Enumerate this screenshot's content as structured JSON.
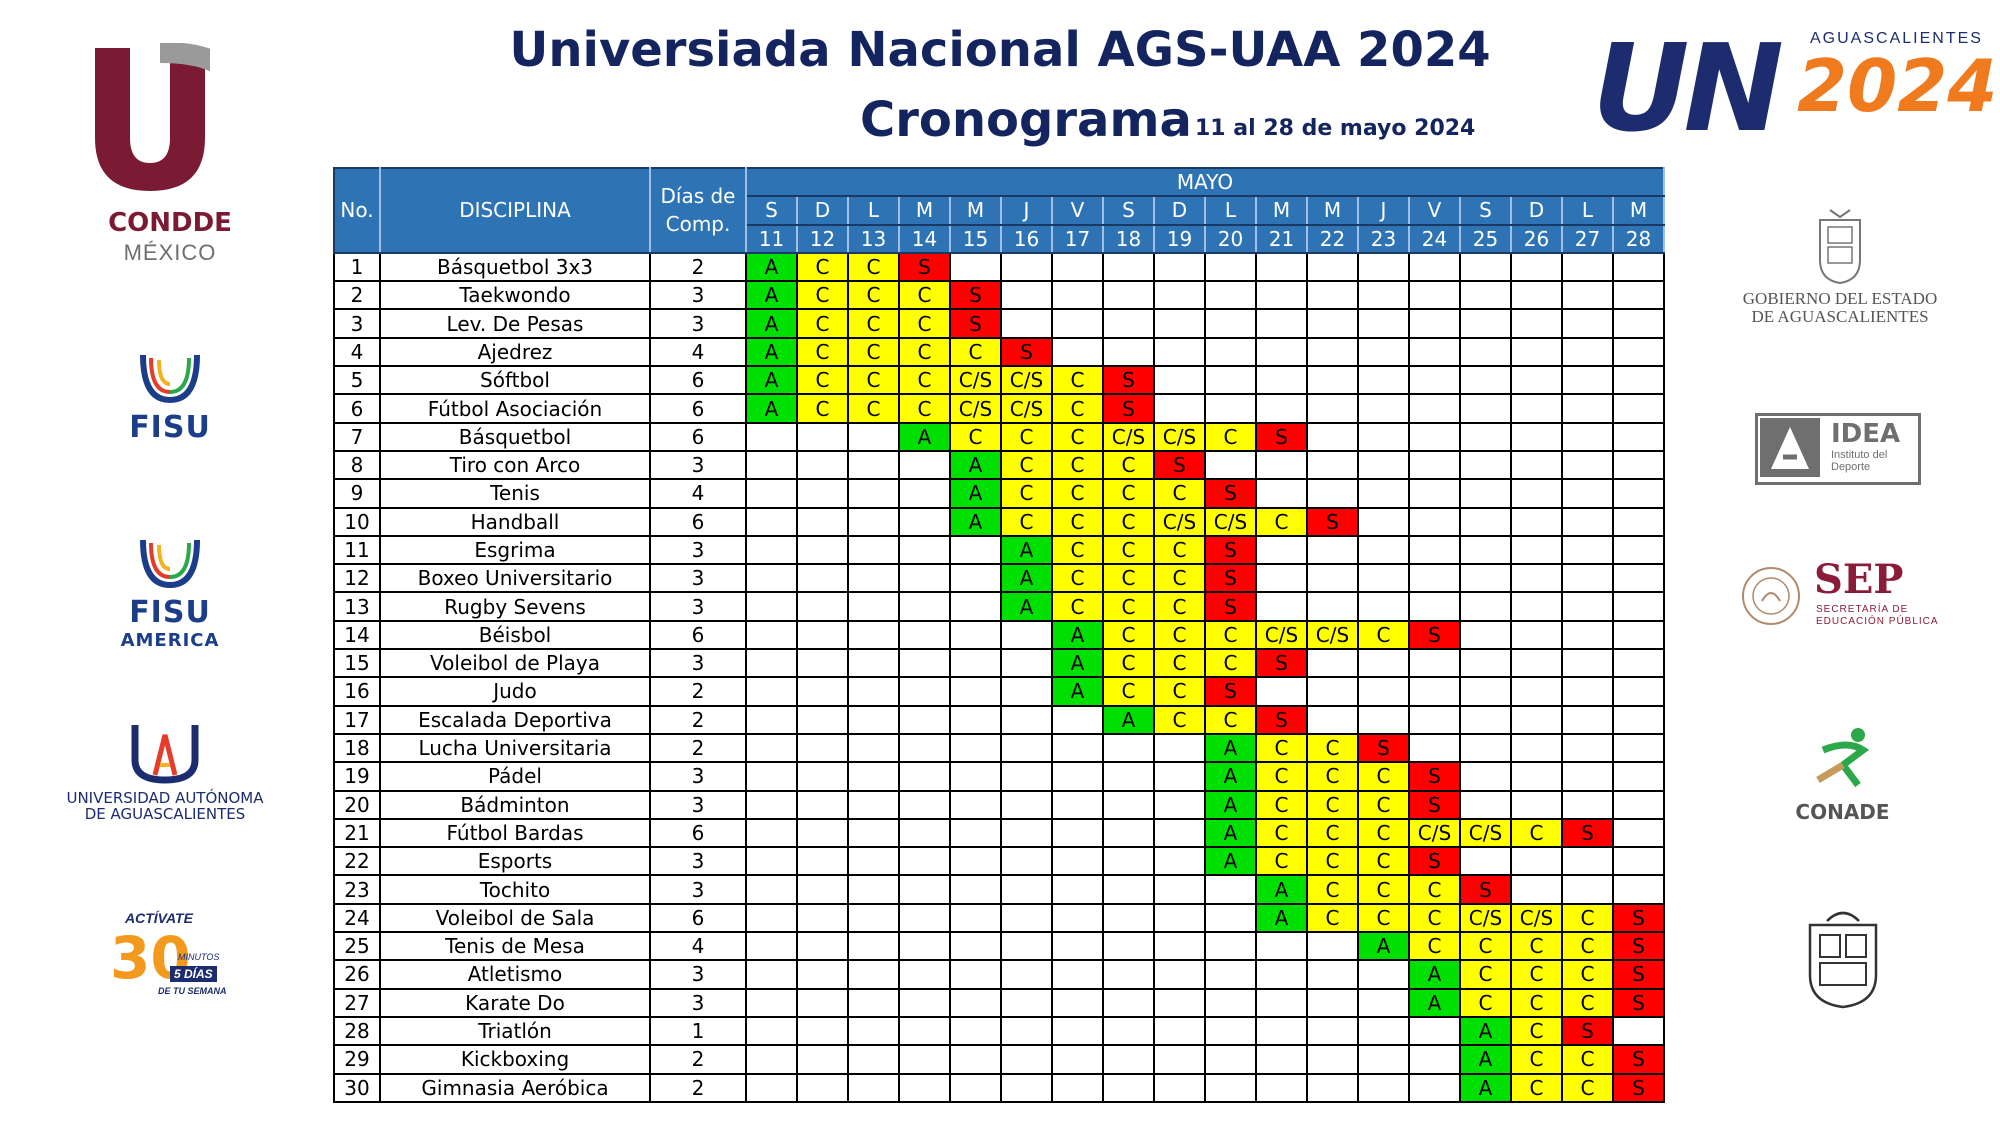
{
  "header": {
    "title": "Universiada Nacional AGS-UAA 2024",
    "subtitle": "Cronograma",
    "dates": "11 al 28 de mayo 2024"
  },
  "logos": {
    "condde_line1": "CONDDE",
    "condde_line2": "MÉXICO",
    "fisu": "FISU",
    "fisu_america_1": "FISU",
    "fisu_america_2": "AMERICA",
    "uaa_line1": "UNIVERSIDAD AUTÓNOMA",
    "uaa_line2": "DE AGUASCALIENTES",
    "activate_1": "ACTÍVATE",
    "activate_2": "30",
    "activate_3": "MINUTOS",
    "activate_4": "5 DÍAS",
    "activate_5": "DE TU SEMANA",
    "un_word": "UN",
    "un_city": "AGUASCALIENTES",
    "un_year": "2024",
    "gob_line1": "GOBIERNO DEL ESTADO",
    "gob_line2": "DE AGUASCALIENTES",
    "idea_title": "IDEA",
    "idea_sub1": "Instituto del",
    "idea_sub2": "Deporte",
    "sep_title": "SEP",
    "sep_sub1": "SECRETARÍA DE",
    "sep_sub2": "EDUCACIÓN PÚBLICA",
    "conade": "CONADE"
  },
  "table": {
    "col_no": "No.",
    "col_disc": "DISCIPLINA",
    "col_dias": "Días de Comp.",
    "month": "MAYO",
    "weekdays": [
      "S",
      "D",
      "L",
      "M",
      "M",
      "J",
      "V",
      "S",
      "D",
      "L",
      "M",
      "M",
      "J",
      "V",
      "S",
      "D",
      "L",
      "M"
    ],
    "days": [
      "11",
      "12",
      "13",
      "14",
      "15",
      "16",
      "17",
      "18",
      "19",
      "20",
      "21",
      "22",
      "23",
      "24",
      "25",
      "26",
      "27",
      "28"
    ],
    "rows": [
      {
        "no": "1",
        "name": "Básquetbol 3x3",
        "dias": "2",
        "cells": [
          "A",
          "C",
          "C",
          "S",
          "",
          "",
          "",
          "",
          "",
          "",
          "",
          "",
          "",
          "",
          "",
          "",
          "",
          ""
        ]
      },
      {
        "no": "2",
        "name": "Taekwondo",
        "dias": "3",
        "cells": [
          "A",
          "C",
          "C",
          "C",
          "S",
          "",
          "",
          "",
          "",
          "",
          "",
          "",
          "",
          "",
          "",
          "",
          "",
          ""
        ]
      },
      {
        "no": "3",
        "name": "Lev. De Pesas",
        "dias": "3",
        "cells": [
          "A",
          "C",
          "C",
          "C",
          "S",
          "",
          "",
          "",
          "",
          "",
          "",
          "",
          "",
          "",
          "",
          "",
          "",
          ""
        ]
      },
      {
        "no": "4",
        "name": "Ajedrez",
        "dias": "4",
        "cells": [
          "A",
          "C",
          "C",
          "C",
          "C",
          "S",
          "",
          "",
          "",
          "",
          "",
          "",
          "",
          "",
          "",
          "",
          "",
          ""
        ]
      },
      {
        "no": "5",
        "name": "Sóftbol",
        "dias": "6",
        "cells": [
          "A",
          "C",
          "C",
          "C",
          "C/S",
          "C/S",
          "C",
          "S",
          "",
          "",
          "",
          "",
          "",
          "",
          "",
          "",
          "",
          ""
        ]
      },
      {
        "no": "6",
        "name": "Fútbol Asociación",
        "dias": "6",
        "cells": [
          "A",
          "C",
          "C",
          "C",
          "C/S",
          "C/S",
          "C",
          "S",
          "",
          "",
          "",
          "",
          "",
          "",
          "",
          "",
          "",
          ""
        ]
      },
      {
        "no": "7",
        "name": "Básquetbol",
        "dias": "6",
        "cells": [
          "",
          "",
          "",
          "A",
          "C",
          "C",
          "C",
          "C/S",
          "C/S",
          "C",
          "S",
          "",
          "",
          "",
          "",
          "",
          "",
          ""
        ]
      },
      {
        "no": "8",
        "name": "Tiro con Arco",
        "dias": "3",
        "cells": [
          "",
          "",
          "",
          "",
          "A",
          "C",
          "C",
          "C",
          "S",
          "",
          "",
          "",
          "",
          "",
          "",
          "",
          "",
          ""
        ]
      },
      {
        "no": "9",
        "name": "Tenis",
        "dias": "4",
        "cells": [
          "",
          "",
          "",
          "",
          "A",
          "C",
          "C",
          "C",
          "C",
          "S",
          "",
          "",
          "",
          "",
          "",
          "",
          "",
          ""
        ]
      },
      {
        "no": "10",
        "name": "Handball",
        "dias": "6",
        "cells": [
          "",
          "",
          "",
          "",
          "A",
          "C",
          "C",
          "C",
          "C/S",
          "C/S",
          "C",
          "S",
          "",
          "",
          "",
          "",
          "",
          ""
        ]
      },
      {
        "no": "11",
        "name": "Esgrima",
        "dias": "3",
        "cells": [
          "",
          "",
          "",
          "",
          "",
          "A",
          "C",
          "C",
          "C",
          "S",
          "",
          "",
          "",
          "",
          "",
          "",
          "",
          ""
        ]
      },
      {
        "no": "12",
        "name": "Boxeo Universitario",
        "dias": "3",
        "cells": [
          "",
          "",
          "",
          "",
          "",
          "A",
          "C",
          "C",
          "C",
          "S",
          "",
          "",
          "",
          "",
          "",
          "",
          "",
          ""
        ]
      },
      {
        "no": "13",
        "name": "Rugby Sevens",
        "dias": "3",
        "cells": [
          "",
          "",
          "",
          "",
          "",
          "A",
          "C",
          "C",
          "C",
          "S",
          "",
          "",
          "",
          "",
          "",
          "",
          "",
          ""
        ]
      },
      {
        "no": "14",
        "name": "Béisbol",
        "dias": "6",
        "cells": [
          "",
          "",
          "",
          "",
          "",
          "",
          "A",
          "C",
          "C",
          "C",
          "C/S",
          "C/S",
          "C",
          "S",
          "",
          "",
          "",
          ""
        ]
      },
      {
        "no": "15",
        "name": "Voleibol de Playa",
        "dias": "3",
        "cells": [
          "",
          "",
          "",
          "",
          "",
          "",
          "A",
          "C",
          "C",
          "C",
          "S",
          "",
          "",
          "",
          "",
          "",
          "",
          ""
        ]
      },
      {
        "no": "16",
        "name": "Judo",
        "dias": "2",
        "cells": [
          "",
          "",
          "",
          "",
          "",
          "",
          "A",
          "C",
          "C",
          "S",
          "",
          "",
          "",
          "",
          "",
          "",
          "",
          ""
        ]
      },
      {
        "no": "17",
        "name": "Escalada Deportiva",
        "dias": "2",
        "cells": [
          "",
          "",
          "",
          "",
          "",
          "",
          "",
          "A",
          "C",
          "C",
          "S",
          "",
          "",
          "",
          "",
          "",
          "",
          ""
        ]
      },
      {
        "no": "18",
        "name": "Lucha Universitaria",
        "dias": "2",
        "cells": [
          "",
          "",
          "",
          "",
          "",
          "",
          "",
          "",
          "",
          "A",
          "C",
          "C",
          "S",
          "",
          "",
          "",
          "",
          ""
        ]
      },
      {
        "no": "19",
        "name": "Pádel",
        "dias": "3",
        "cells": [
          "",
          "",
          "",
          "",
          "",
          "",
          "",
          "",
          "",
          "A",
          "C",
          "C",
          "C",
          "S",
          "",
          "",
          "",
          ""
        ]
      },
      {
        "no": "20",
        "name": "Bádminton",
        "dias": "3",
        "cells": [
          "",
          "",
          "",
          "",
          "",
          "",
          "",
          "",
          "",
          "A",
          "C",
          "C",
          "C",
          "S",
          "",
          "",
          "",
          ""
        ]
      },
      {
        "no": "21",
        "name": "Fútbol Bardas",
        "dias": "6",
        "cells": [
          "",
          "",
          "",
          "",
          "",
          "",
          "",
          "",
          "",
          "A",
          "C",
          "C",
          "C",
          "C/S",
          "C/S",
          "C",
          "S",
          ""
        ]
      },
      {
        "no": "22",
        "name": "Esports",
        "dias": "3",
        "cells": [
          "",
          "",
          "",
          "",
          "",
          "",
          "",
          "",
          "",
          "A",
          "C",
          "C",
          "C",
          "S",
          "",
          "",
          "",
          ""
        ]
      },
      {
        "no": "23",
        "name": "Tochito",
        "dias": "3",
        "cells": [
          "",
          "",
          "",
          "",
          "",
          "",
          "",
          "",
          "",
          "",
          "A",
          "C",
          "C",
          "C",
          "S",
          "",
          "",
          ""
        ]
      },
      {
        "no": "24",
        "name": "Voleibol de Sala",
        "dias": "6",
        "cells": [
          "",
          "",
          "",
          "",
          "",
          "",
          "",
          "",
          "",
          "",
          "A",
          "C",
          "C",
          "C",
          "C/S",
          "C/S",
          "C",
          "S"
        ]
      },
      {
        "no": "25",
        "name": "Tenis de Mesa",
        "dias": "4",
        "cells": [
          "",
          "",
          "",
          "",
          "",
          "",
          "",
          "",
          "",
          "",
          "",
          "",
          "A",
          "C",
          "C",
          "C",
          "C",
          "S"
        ]
      },
      {
        "no": "26",
        "name": "Atletismo",
        "dias": "3",
        "cells": [
          "",
          "",
          "",
          "",
          "",
          "",
          "",
          "",
          "",
          "",
          "",
          "",
          "",
          "A",
          "C",
          "C",
          "C",
          "S"
        ]
      },
      {
        "no": "27",
        "name": "Karate Do",
        "dias": "3",
        "cells": [
          "",
          "",
          "",
          "",
          "",
          "",
          "",
          "",
          "",
          "",
          "",
          "",
          "",
          "A",
          "C",
          "C",
          "C",
          "S"
        ]
      },
      {
        "no": "28",
        "name": "Triatlón",
        "dias": "1",
        "cells": [
          "",
          "",
          "",
          "",
          "",
          "",
          "",
          "",
          "",
          "",
          "",
          "",
          "",
          "",
          "A",
          "C",
          "S",
          ""
        ]
      },
      {
        "no": "29",
        "name": "Kickboxing",
        "dias": "2",
        "cells": [
          "",
          "",
          "",
          "",
          "",
          "",
          "",
          "",
          "",
          "",
          "",
          "",
          "",
          "",
          "A",
          "C",
          "C",
          "S"
        ]
      },
      {
        "no": "30",
        "name": "Gimnasia Aeróbica",
        "dias": "2",
        "cells": [
          "",
          "",
          "",
          "",
          "",
          "",
          "",
          "",
          "",
          "",
          "",
          "",
          "",
          "",
          "A",
          "C",
          "C",
          "S"
        ]
      }
    ]
  },
  "colors": {
    "header_blue": "#2e74b5",
    "title_navy": "#14245e",
    "A": "#00e000",
    "C": "#ffff00",
    "S": "#ff0000"
  }
}
